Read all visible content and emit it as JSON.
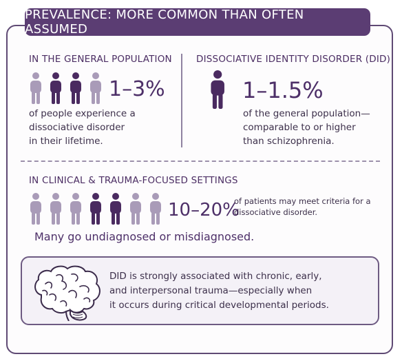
{
  "banner": {
    "title": "PREVALENCE: MORE COMMON THAN OFTEN ASSUMED"
  },
  "general": {
    "heading": "IN THE GENERAL POPULATION",
    "stat": "1–3%",
    "desc": [
      "of people experience a",
      "dissociative disorder",
      "in their lifetime."
    ],
    "icons": [
      "light",
      "dark",
      "dark",
      "light"
    ]
  },
  "did": {
    "heading": "DISSOCIATIVE IDENTITY DISORDER (DID)",
    "stat": "1–1.5%",
    "desc": [
      "of the general population—",
      "comparable to or higher",
      "than schizophrenia."
    ],
    "icons": [
      "dark"
    ]
  },
  "clinical": {
    "heading": "IN CLINICAL & TRAUMA-FOCUSED SETTINGS",
    "stat": "10–20%",
    "desc": [
      "of patients may meet criteria for a",
      "dissociative disorder."
    ],
    "icons": [
      "light",
      "light",
      "light",
      "dark",
      "dark",
      "light",
      "light"
    ],
    "note": "Many go undiagnosed or misdiagnosed."
  },
  "trauma_note": {
    "lines": [
      "DID is strongly associated with chronic, early,",
      "and interpersonal trauma—especially when",
      "it occurs during critical developmental periods."
    ],
    "icon": "brain-icon"
  },
  "colors": {
    "accent": "#5b3d73",
    "dark_figure": "#4a2a60",
    "light_figure": "#a99bb8",
    "background": "#ffffff"
  }
}
